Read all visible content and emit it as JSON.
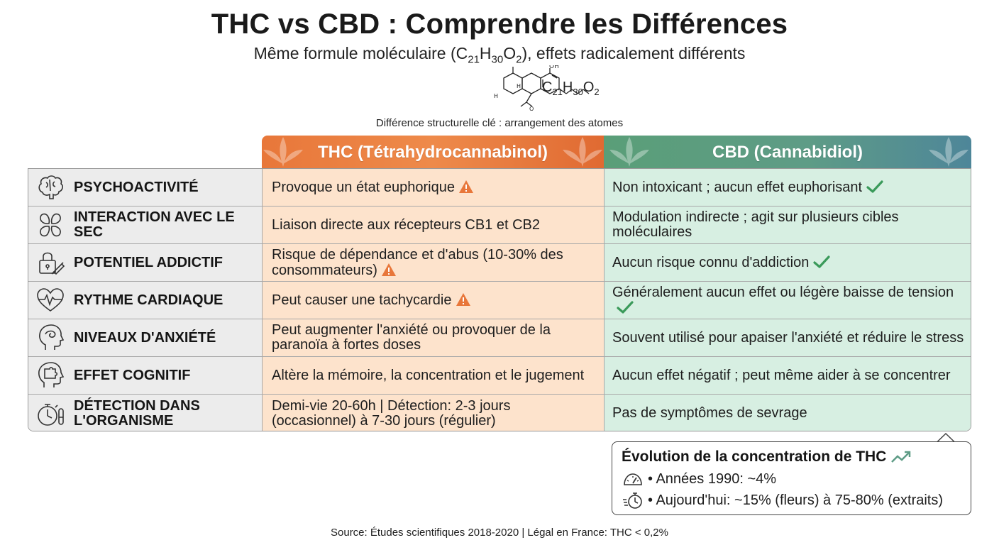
{
  "header": {
    "title": "THC vs CBD : Comprendre les Différences",
    "subtitle_prefix": "Même formule moléculaire (C",
    "subtitle_sub1": "21",
    "subtitle_mid1": "H",
    "subtitle_sub2": "30",
    "subtitle_mid2": "O",
    "subtitle_sub3": "2",
    "subtitle_suffix": "), effets radicalement différents"
  },
  "molecule": {
    "label_oh": "OH",
    "label_h1": "H",
    "label_h2": "H",
    "label_o": "O",
    "formula": "C21H30O2"
  },
  "structural_note": "Différence structurelle clé : arrangement des atomes",
  "columns": {
    "thc": "THC (Tétrahydrocannabinol)",
    "cbd": "CBD (Cannabidiol)"
  },
  "rows": [
    {
      "icon": "brain-icon",
      "label": "PSYCHOACTIVITÉ",
      "thc": "Provoque un état euphorique",
      "thc_flag": "warning",
      "cbd": "Non intoxicant ; aucun effet euphorisant",
      "cbd_flag": "check"
    },
    {
      "icon": "receptor-icon",
      "label": "INTERACTION AVEC LE SEC",
      "thc": "Liaison directe aux récepteurs CB1 et CB2",
      "thc_flag": "",
      "cbd": "Modulation indirecte ; agit sur plusieurs cibles moléculaires",
      "cbd_flag": ""
    },
    {
      "icon": "padlock-syringe-icon",
      "label": "POTENTIEL ADDICTIF",
      "thc": "Risque de dépendance et d'abus (10-30% des consommateurs)",
      "thc_flag": "warning",
      "cbd": "Aucun risque connu d'addiction",
      "cbd_flag": "check"
    },
    {
      "icon": "heartbeat-icon",
      "label": "RYTHME CARDIAQUE",
      "thc": "Peut causer une tachycardie",
      "thc_flag": "warning",
      "cbd": "Généralement aucun effet ou légère baisse de tension",
      "cbd_flag": "check"
    },
    {
      "icon": "head-anxiety-icon",
      "label": "NIVEAUX D'ANXIÉTÉ",
      "thc": "Peut augmenter l'anxiété ou provoquer de la paranoïa à fortes doses",
      "thc_flag": "",
      "cbd": "Souvent utilisé pour apaiser l'anxiété et réduire le stress",
      "cbd_flag": ""
    },
    {
      "icon": "puzzle-head-icon",
      "label": "EFFET COGNITIF",
      "thc": "Altère la mémoire, la concentration et le jugement",
      "thc_flag": "",
      "cbd": "Aucun effet négatif ; peut même aider à se concentrer",
      "cbd_flag": ""
    },
    {
      "icon": "stopwatch-testtube-icon",
      "label": "DÉTECTION DANS L'ORGANISME",
      "thc": "Demi-vie 20-60h | Détection: 2-3 jours (occasionnel) à 7-30 jours (régulier)",
      "thc_flag": "",
      "cbd": "Pas de symptômes de sevrage",
      "cbd_flag": ""
    }
  ],
  "evolution": {
    "title": "Évolution de la concentration de THC",
    "line1": "• Années 1990: ~4%",
    "line2": "• Aujourd'hui: ~15% (fleurs) à 75-80% (extraits)"
  },
  "source": "Source: Études scientifiques 2018-2020 | Légal en France: THC < 0,2%",
  "colors": {
    "thc_header": "#e8773a",
    "cbd_header": "#5e9c86",
    "thc_cell": "#fde3cc",
    "cbd_cell": "#d7efe2",
    "label_cell": "#ececec",
    "warning": "#e8773a",
    "check": "#3a9a5a"
  }
}
